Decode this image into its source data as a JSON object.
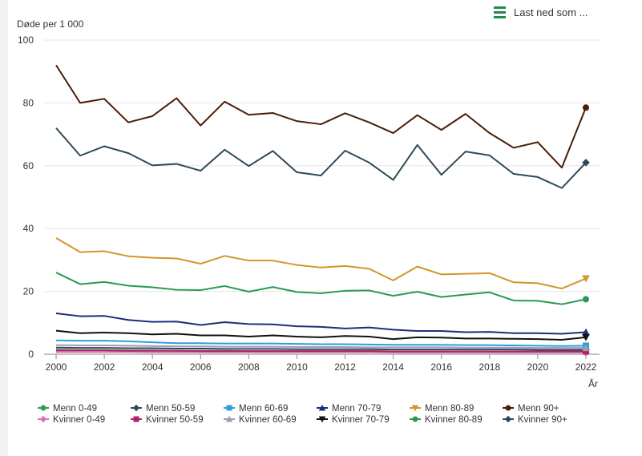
{
  "download": {
    "label": "Last ned som ...",
    "icon": "hamburger-menu-icon"
  },
  "chart_data": {
    "type": "line",
    "title": "",
    "ylabel": "Døde per 1 000",
    "xlabel": "År",
    "ylim": [
      0,
      100
    ],
    "yticks": [
      0,
      20,
      40,
      60,
      80,
      100
    ],
    "xticks": [
      2000,
      2002,
      2004,
      2006,
      2008,
      2010,
      2012,
      2014,
      2016,
      2018,
      2020,
      2022
    ],
    "grid": "horizontal",
    "legend_position": "bottom",
    "x": [
      2000,
      2001,
      2002,
      2003,
      2004,
      2005,
      2006,
      2007,
      2008,
      2009,
      2010,
      2011,
      2012,
      2013,
      2014,
      2015,
      2016,
      2017,
      2018,
      2019,
      2020,
      2021,
      2022
    ],
    "series": [
      {
        "name": "Menn 0-49",
        "color": "#2e9e5b",
        "marker": "circle",
        "values": [
          1.4,
          1.3,
          1.3,
          1.2,
          1.2,
          1.1,
          1.1,
          1.1,
          1.0,
          1.0,
          1.0,
          1.0,
          1.0,
          1.0,
          0.9,
          0.9,
          0.9,
          0.9,
          0.9,
          0.9,
          0.9,
          0.9,
          0.9
        ]
      },
      {
        "name": "Menn 50-59",
        "color": "#2f4858",
        "marker": "diamond",
        "values": [
          2.1,
          2.0,
          2.0,
          1.9,
          1.9,
          1.8,
          1.8,
          1.7,
          1.7,
          1.7,
          1.6,
          1.6,
          1.6,
          1.6,
          1.5,
          1.5,
          1.5,
          1.5,
          1.5,
          1.5,
          1.4,
          1.4,
          1.4
        ]
      },
      {
        "name": "Menn 60-69",
        "color": "#2b9fe0",
        "marker": "square",
        "values": [
          4.4,
          4.3,
          4.3,
          4.1,
          3.8,
          3.5,
          3.5,
          3.4,
          3.4,
          3.4,
          3.3,
          3.2,
          3.2,
          3.1,
          3.0,
          3.0,
          3.0,
          2.9,
          2.9,
          2.8,
          2.7,
          2.6,
          2.7
        ]
      },
      {
        "name": "Menn 70-79",
        "color": "#1f2d7a",
        "marker": "triangle",
        "values": [
          13.0,
          12.1,
          12.2,
          10.9,
          10.3,
          10.4,
          9.3,
          10.2,
          9.6,
          9.5,
          8.9,
          8.7,
          8.2,
          8.5,
          7.8,
          7.4,
          7.4,
          7.0,
          7.1,
          6.7,
          6.7,
          6.5,
          7.0
        ]
      },
      {
        "name": "Menn 80-89",
        "color": "#d4952a",
        "marker": "triangle-down",
        "values": [
          37.0,
          32.5,
          32.8,
          31.2,
          30.7,
          30.5,
          28.8,
          31.3,
          29.8,
          29.8,
          28.4,
          27.6,
          28.1,
          27.2,
          23.5,
          27.9,
          25.4,
          25.6,
          25.8,
          22.9,
          22.6,
          20.9,
          24.1
        ]
      },
      {
        "name": "Menn 90+",
        "color": "#4a1e08",
        "marker": "circle",
        "values": [
          92.0,
          80.0,
          81.3,
          73.8,
          75.8,
          81.5,
          72.8,
          80.4,
          76.2,
          76.8,
          74.2,
          73.2,
          76.7,
          73.8,
          70.4,
          76.1,
          71.4,
          76.5,
          70.4,
          65.7,
          67.5,
          59.4,
          78.5
        ]
      },
      {
        "name": "Kvinner 0-49",
        "color": "#d676b0",
        "marker": "diamond",
        "values": [
          0.7,
          0.7,
          0.7,
          0.7,
          0.6,
          0.6,
          0.6,
          0.6,
          0.6,
          0.6,
          0.6,
          0.6,
          0.6,
          0.6,
          0.5,
          0.5,
          0.5,
          0.5,
          0.5,
          0.5,
          0.5,
          0.5,
          0.5
        ]
      },
      {
        "name": "Kvinner 50-59",
        "color": "#b0226a",
        "marker": "square",
        "values": [
          1.2,
          1.2,
          1.2,
          1.1,
          1.1,
          1.1,
          1.0,
          1.0,
          1.0,
          1.0,
          1.0,
          1.0,
          1.0,
          1.0,
          0.9,
          0.9,
          0.9,
          0.9,
          0.9,
          0.9,
          0.9,
          0.9,
          0.9
        ]
      },
      {
        "name": "Kvinner 60-69",
        "color": "#a39ab0",
        "marker": "triangle",
        "values": [
          2.9,
          2.8,
          2.8,
          2.7,
          2.6,
          2.5,
          2.5,
          2.4,
          2.4,
          2.4,
          2.3,
          2.3,
          2.3,
          2.2,
          2.2,
          2.2,
          2.2,
          2.1,
          2.1,
          2.1,
          2.0,
          2.0,
          2.0
        ]
      },
      {
        "name": "Kvinner 70-79",
        "color": "#111111",
        "marker": "triangle-down",
        "values": [
          7.5,
          6.7,
          6.9,
          6.7,
          6.3,
          6.5,
          6.0,
          6.0,
          5.6,
          6.0,
          5.6,
          5.4,
          5.8,
          5.6,
          4.8,
          5.4,
          5.3,
          5.0,
          5.0,
          4.9,
          4.8,
          4.6,
          5.4
        ]
      },
      {
        "name": "Kvinner 80-89",
        "color": "#2a9a52",
        "marker": "circle",
        "values": [
          26.0,
          22.3,
          23.0,
          21.8,
          21.3,
          20.5,
          20.4,
          21.7,
          19.9,
          21.4,
          19.8,
          19.4,
          20.2,
          20.3,
          18.6,
          19.9,
          18.2,
          19.0,
          19.7,
          17.1,
          17.0,
          15.9,
          17.5
        ]
      },
      {
        "name": "Kvinner 90+",
        "color": "#2e4a57",
        "marker": "diamond",
        "values": [
          72.0,
          63.2,
          66.2,
          64.0,
          60.1,
          60.6,
          58.4,
          65.1,
          59.9,
          64.7,
          57.9,
          56.9,
          64.8,
          61.0,
          55.5,
          66.6,
          57.1,
          64.5,
          63.3,
          57.4,
          56.4,
          52.9,
          61.0
        ]
      }
    ]
  }
}
